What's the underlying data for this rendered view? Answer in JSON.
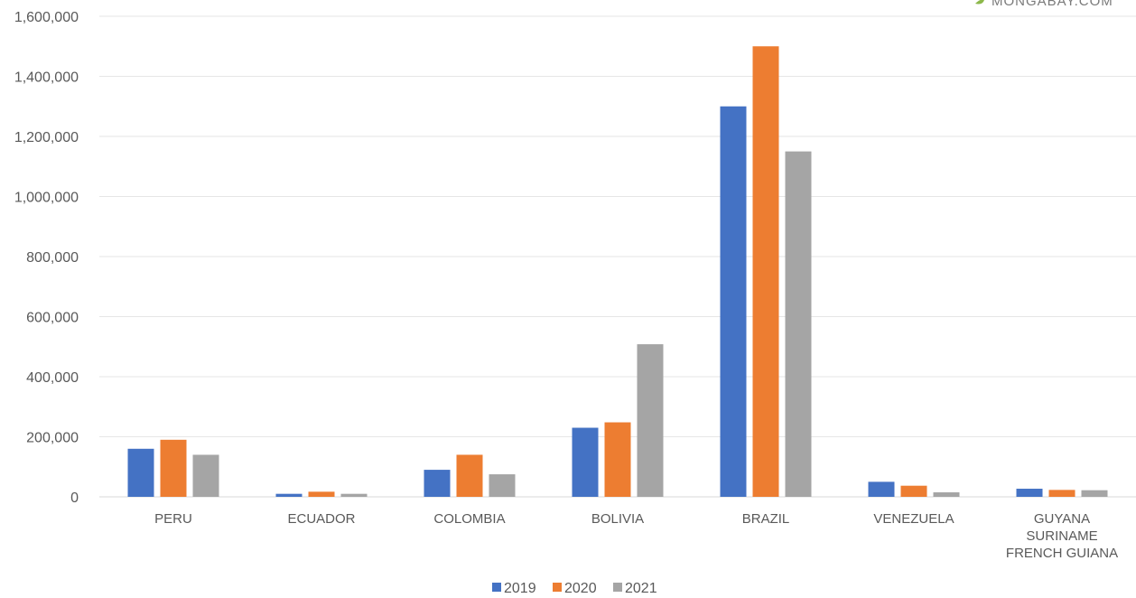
{
  "watermark": "MONGABAY.COM",
  "chart_data": {
    "type": "bar",
    "categories": [
      "PERU",
      "ECUADOR",
      "COLOMBIA",
      "BOLIVIA",
      "BRAZIL",
      "VENEZUELA",
      "GUYANA\nSURINAME\nFRENCH GUIANA"
    ],
    "series": [
      {
        "name": "2019",
        "color": "#4472c4",
        "values": [
          160000,
          10000,
          90000,
          230000,
          1300000,
          50000,
          27000
        ]
      },
      {
        "name": "2020",
        "color": "#ed7d31",
        "values": [
          190000,
          17000,
          140000,
          248000,
          1500000,
          37000,
          23000
        ]
      },
      {
        "name": "2021",
        "color": "#a5a5a5",
        "values": [
          140000,
          10000,
          75000,
          508000,
          1150000,
          15000,
          22000
        ]
      }
    ],
    "yticks": [
      "0",
      "200,000",
      "400,000",
      "600,000",
      "800,000",
      "1,000,000",
      "1,200,000",
      "1,400,000",
      "1,600,000"
    ],
    "ylim": [
      0,
      1600000
    ],
    "grid": true,
    "legend_position": "bottom"
  }
}
